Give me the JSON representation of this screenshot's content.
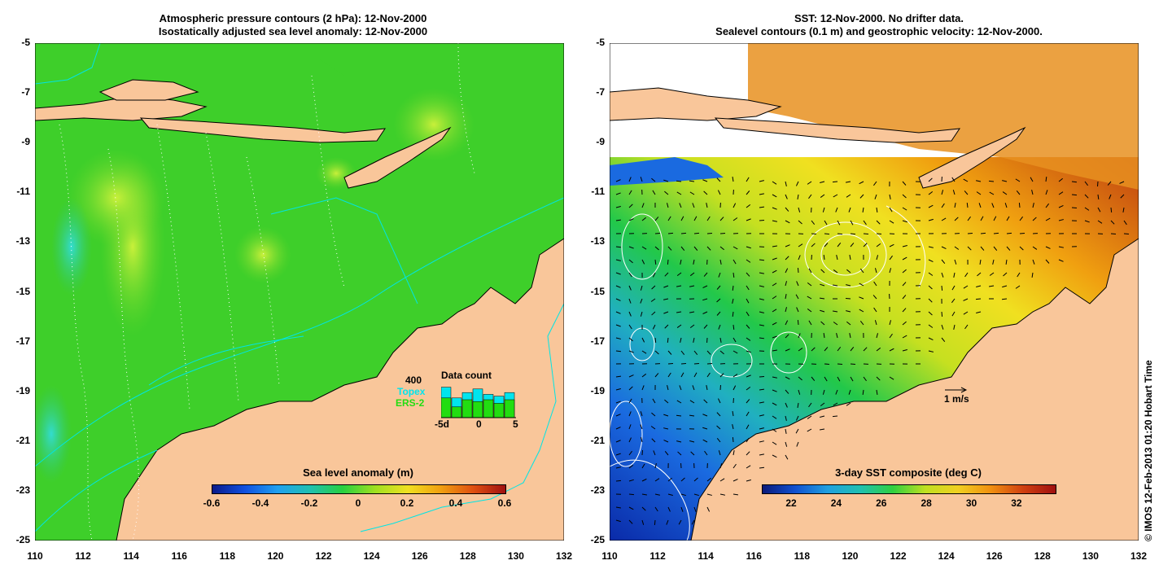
{
  "left": {
    "title_line1": "Atmospheric pressure contours (2 hPa): 12-Nov-2000",
    "title_line2": "Isostatically adjusted sea level anomaly: 12-Nov-2000",
    "colorbar_title": "Sea level anomaly (m)",
    "colorbar_ticks": [
      "-0.6",
      "-0.4",
      "-0.2",
      "0",
      "0.2",
      "0.4",
      "0.6"
    ],
    "colors": {
      "sea": "#3ecf2a",
      "land": "#f9c69a",
      "coastline": "#000000",
      "contour": "#00e5e5"
    },
    "data_count": {
      "title": "Data count",
      "max_label": "400",
      "topex_label": "Topex",
      "ers_label": "ERS-2",
      "xticks": [
        "-5d",
        "0",
        "5"
      ],
      "topex_color": "#00e5ee",
      "ers_color": "#22dd11",
      "topex_values": [
        0.85,
        0.55,
        0.7,
        0.8,
        0.65,
        0.6,
        0.7
      ],
      "ers_values": [
        0.55,
        0.3,
        0.5,
        0.45,
        0.5,
        0.4,
        0.5
      ]
    }
  },
  "right": {
    "title_line1": "SST: 12-Nov-2000. No drifter data.",
    "title_line2": "Sealevel contours (0.1 m) and geostrophic velocity: 12-Nov-2000.",
    "colorbar_title": "3-day SST composite (deg C)",
    "colorbar_ticks": [
      "22",
      "24",
      "26",
      "28",
      "30",
      "32"
    ],
    "scale_label": "1 m/s",
    "colors": {
      "land": "#f9c69a"
    }
  },
  "axes": {
    "x_ticks": [
      "110",
      "112",
      "114",
      "116",
      "118",
      "120",
      "122",
      "124",
      "126",
      "128",
      "130",
      "132"
    ],
    "y_ticks": [
      "-5",
      "-7",
      "-9",
      "-11",
      "-13",
      "-15",
      "-17",
      "-19",
      "-21",
      "-23",
      "-25"
    ]
  },
  "credit": "© IMOS 12-Feb-2013 01:20 Hobart Time"
}
